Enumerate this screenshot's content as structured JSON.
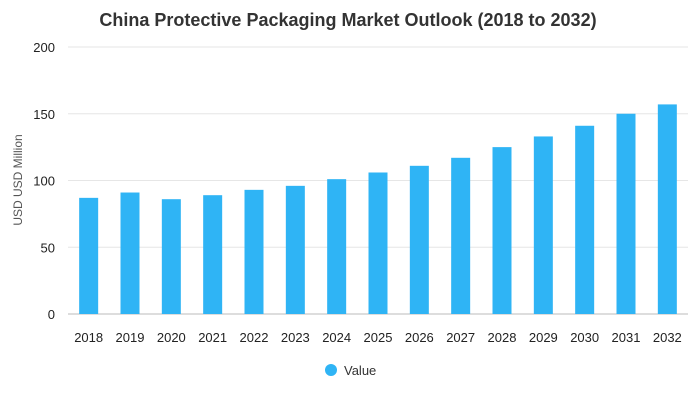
{
  "chart_data": {
    "type": "bar",
    "title": "China Protective Packaging Market Outlook (2018 to 2032)",
    "ylabel": "USD USD Million",
    "xlabel": "",
    "categories": [
      "2018",
      "2019",
      "2020",
      "2021",
      "2022",
      "2023",
      "2024",
      "2025",
      "2026",
      "2027",
      "2028",
      "2029",
      "2030",
      "2031",
      "2032"
    ],
    "series": [
      {
        "name": "Value",
        "color": "#2fb4f5",
        "values": [
          87,
          91,
          86,
          89,
          93,
          96,
          101,
          106,
          111,
          117,
          125,
          133,
          141,
          150,
          157
        ]
      }
    ],
    "ylim": [
      0,
      200
    ],
    "yticks": [
      0,
      50,
      100,
      150,
      200
    ],
    "grid": true,
    "legend_position": "bottom-center"
  }
}
